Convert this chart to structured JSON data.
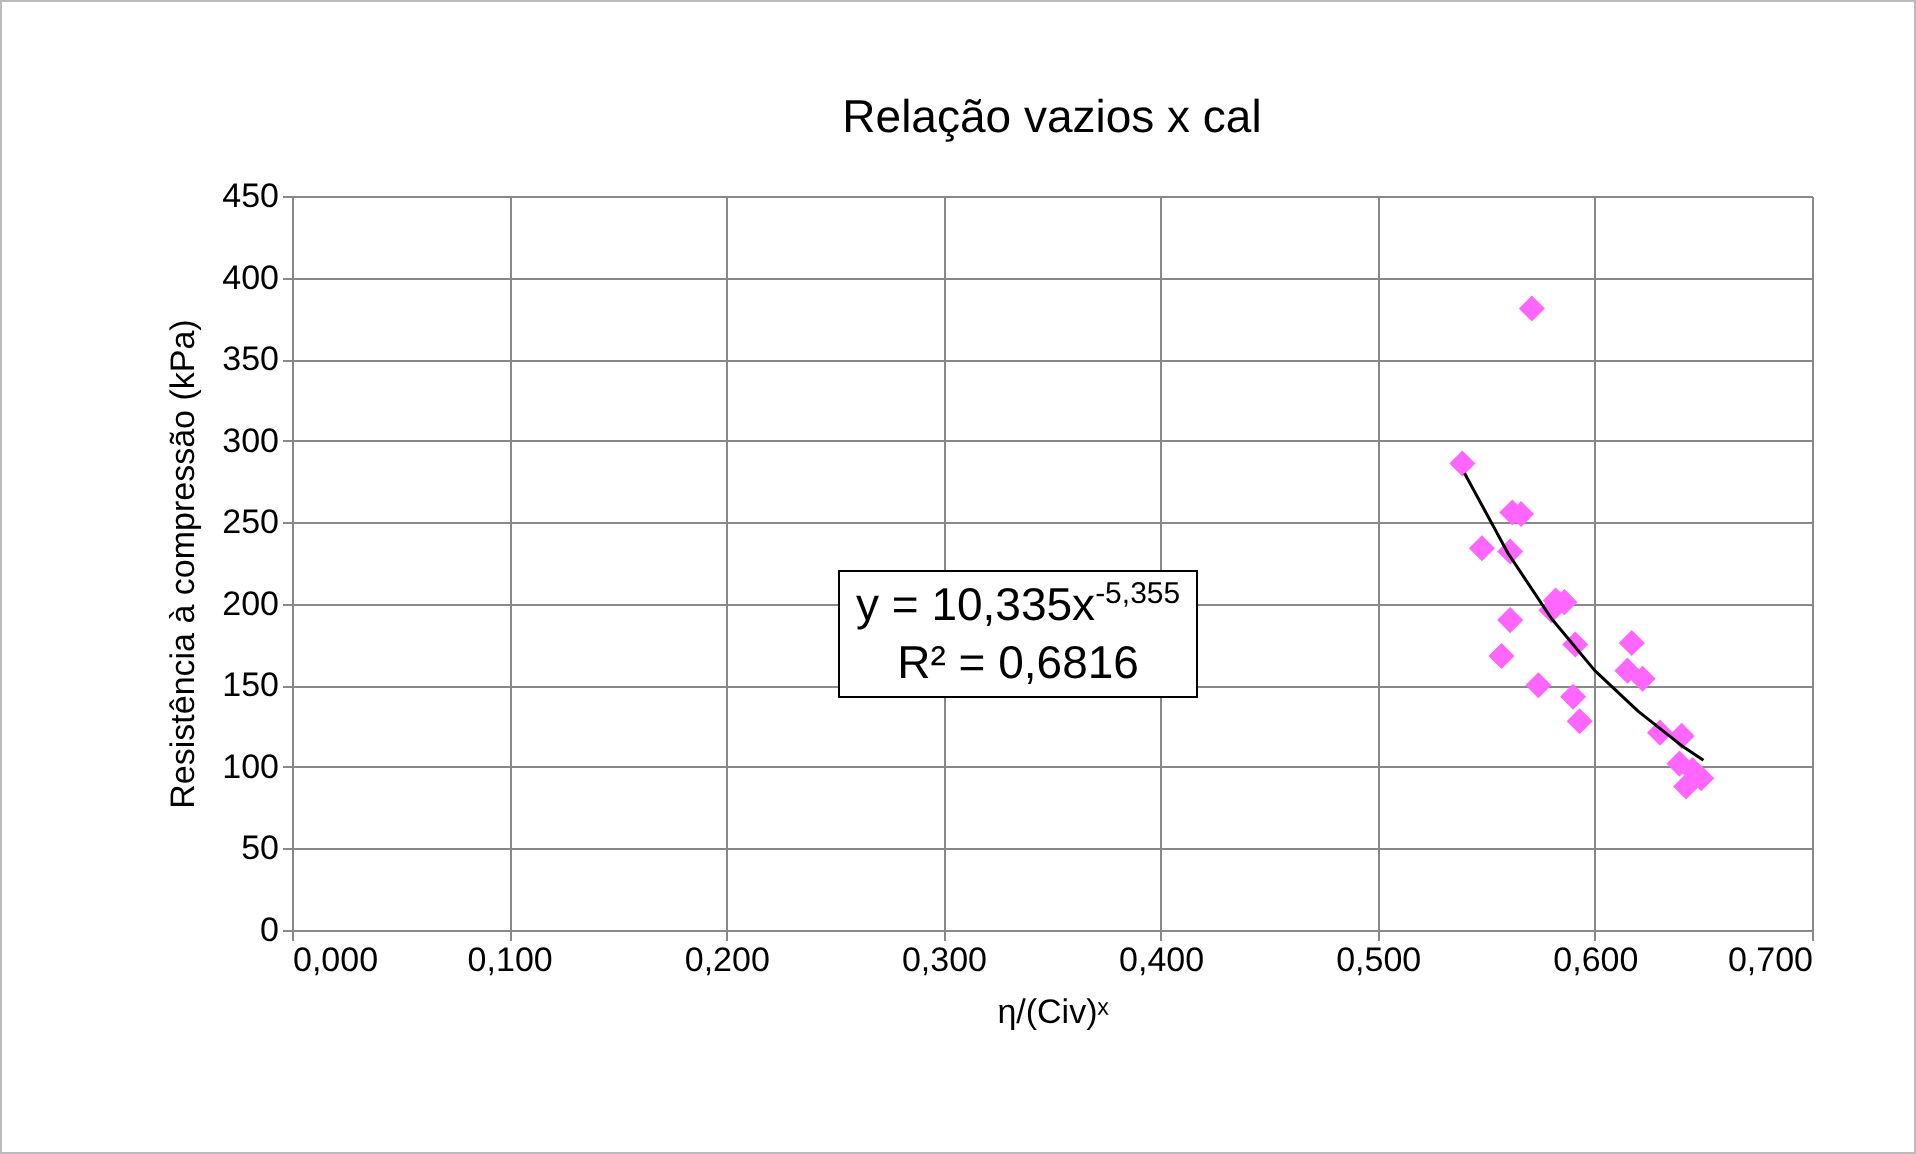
{
  "chart_data": {
    "type": "scatter",
    "title": "Relação vazios x cal",
    "xlabel": "η/(Civ)ˣ",
    "ylabel": "Resistência à compressão (kPa)",
    "xlim": [
      0,
      0.7
    ],
    "xticks": [
      {
        "value": 0,
        "label": "0,000"
      },
      {
        "value": 0.1,
        "label": "0,100"
      },
      {
        "value": 0.2,
        "label": "0,200"
      },
      {
        "value": 0.3,
        "label": "0,300"
      },
      {
        "value": 0.4,
        "label": "0,400"
      },
      {
        "value": 0.5,
        "label": "0,500"
      },
      {
        "value": 0.6,
        "label": "0,600"
      },
      {
        "value": 0.7,
        "label": "0,700"
      }
    ],
    "ylim": [
      0,
      450
    ],
    "yticks": [
      0,
      50,
      100,
      150,
      200,
      250,
      300,
      350,
      400,
      450
    ],
    "grid": true,
    "annotations": [
      "y = 10,335x$^{-5,355}$",
      "R² = 0,6816"
    ],
    "series": [
      {
        "marker": "diamond",
        "color": "#ff66ff",
        "x": [
          0.539,
          0.571,
          0.548,
          0.562,
          0.566,
          0.561,
          0.561,
          0.557,
          0.574,
          0.582,
          0.586,
          0.58,
          0.591,
          0.59,
          0.593,
          0.617,
          0.615,
          0.622,
          0.63,
          0.64,
          0.639,
          0.645,
          0.642,
          0.649
        ],
        "values": [
          286,
          381,
          234,
          256,
          255,
          232,
          190,
          168,
          150,
          202,
          201,
          196,
          175,
          143,
          128,
          176,
          159,
          154,
          121,
          119,
          102,
          98,
          88,
          93
        ]
      },
      {
        "type": "line",
        "marker": "none",
        "color": "#000000",
        "x": [
          0.54,
          0.56,
          0.58,
          0.6,
          0.62,
          0.64,
          0.65
        ],
        "values": [
          280,
          231,
          191,
          159,
          134,
          113,
          104
        ]
      }
    ]
  }
}
